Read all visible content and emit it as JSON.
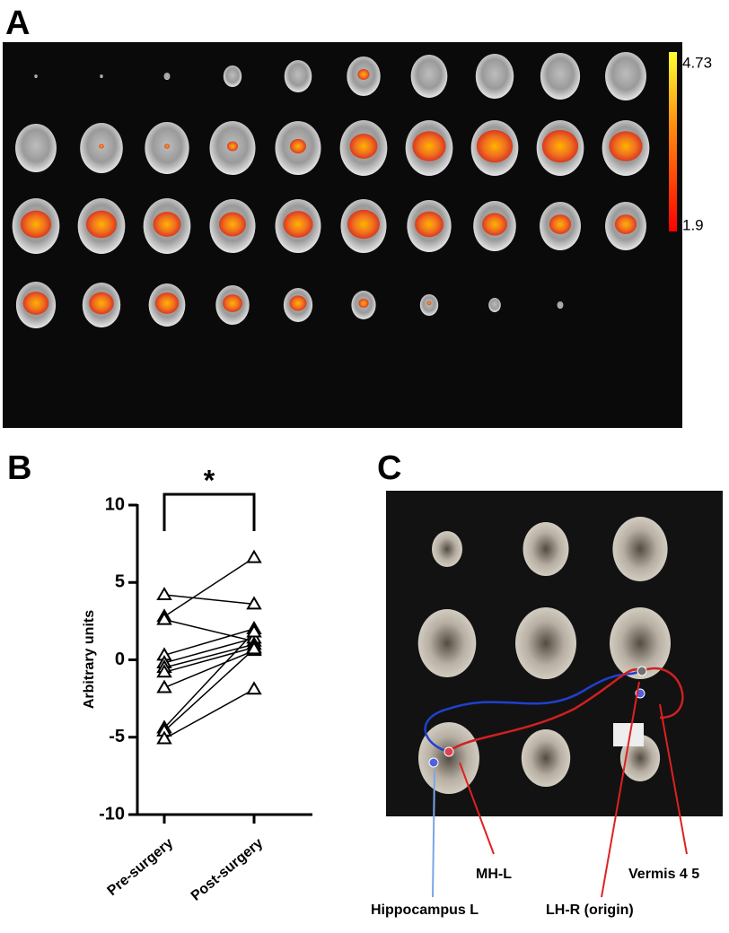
{
  "panel_labels": [
    "A",
    "B",
    "C"
  ],
  "colorbar": {
    "max": 4.73,
    "min": 1.9
  },
  "chart_data": {
    "type": "paired",
    "ylabel": "Arbitrary units",
    "annotation": "*",
    "categories": [
      "Pre-surgery",
      "Post-surgery"
    ],
    "color": "#000000",
    "series": [
      {
        "values": [
          4.2,
          3.6
        ]
      },
      {
        "values": [
          2.8,
          6.6
        ]
      },
      {
        "values": [
          2.6,
          1.2
        ]
      },
      {
        "values": [
          0.3,
          2.0
        ]
      },
      {
        "values": [
          -0.2,
          1.4
        ]
      },
      {
        "values": [
          -0.5,
          1.0
        ]
      },
      {
        "values": [
          -0.8,
          0.8
        ]
      },
      {
        "values": [
          -1.8,
          0.6
        ]
      },
      {
        "values": [
          -4.4,
          1.8
        ]
      },
      {
        "values": [
          -4.6,
          0.7
        ]
      },
      {
        "values": [
          -5.1,
          -1.9
        ]
      }
    ],
    "ylim": [
      -10,
      10
    ],
    "yticks": [
      -10,
      -5,
      0,
      5,
      10
    ]
  },
  "regions": [
    "MH-L",
    "Vermis 4 5",
    "Hippocampus L",
    "LH-R (origin)"
  ]
}
